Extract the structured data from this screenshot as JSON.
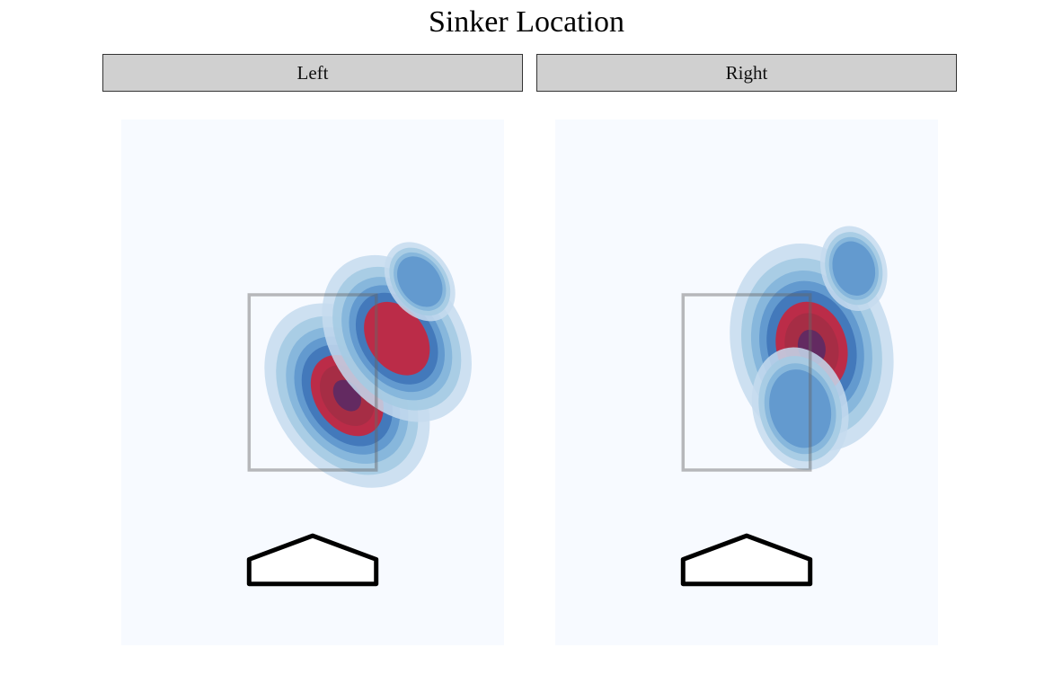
{
  "chart_data": {
    "type": "heatmap",
    "title": "Sinker Location",
    "xlabel": "",
    "ylabel": "",
    "colors": {
      "panel_bg": "#f7faff",
      "levels": [
        "#c6dbef",
        "#a5cbe3",
        "#83b5da",
        "#5f97cd",
        "#3f76b8",
        "#c9243c",
        "#a42e45",
        "#5c2a64"
      ],
      "zone": "#aaaaaa",
      "plate": "#000000"
    },
    "panels": [
      {
        "name": "Left",
        "center": [
          0.35,
          2.55
        ],
        "peaks": [
          {
            "x": 0.45,
            "y": 2.35,
            "w": 1.0
          },
          {
            "x": 1.1,
            "y": 3.0,
            "w": 0.85
          },
          {
            "x": 1.4,
            "y": 3.65,
            "w": 0.25
          }
        ]
      },
      {
        "name": "Right",
        "center": [
          0.9,
          2.8
        ],
        "peaks": [
          {
            "x": 0.85,
            "y": 2.9,
            "w": 1.0
          },
          {
            "x": 0.7,
            "y": 2.2,
            "w": 0.35
          },
          {
            "x": 1.4,
            "y": 3.8,
            "w": 0.2
          }
        ]
      }
    ]
  }
}
